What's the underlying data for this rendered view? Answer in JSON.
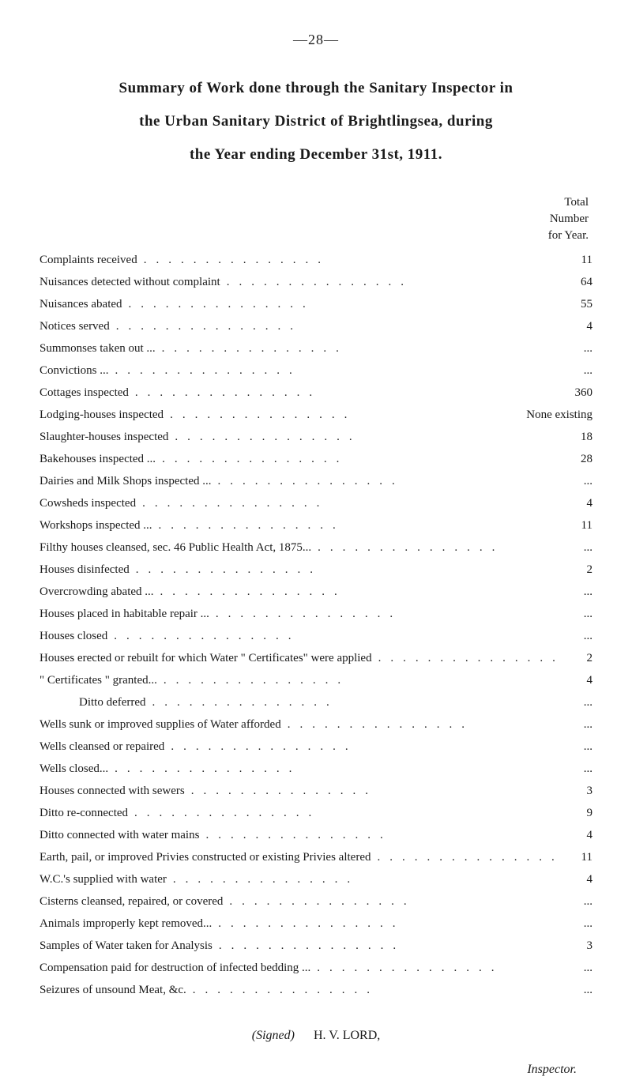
{
  "page_number": "—28—",
  "title": {
    "line1": "Summary of Work done through the Sanitary Inspector in",
    "line2": "the Urban Sanitary District of Brightlingsea, during",
    "line3": "the Year ending December 31st, 1911."
  },
  "header": {
    "line1": "Total",
    "line2": "Number",
    "line3": "for Year."
  },
  "rows": [
    {
      "label": "Complaints received",
      "value": "11"
    },
    {
      "label": "Nuisances detected without complaint",
      "value": "64"
    },
    {
      "label": "Nuisances abated",
      "value": "55"
    },
    {
      "label": "Notices served",
      "value": "4"
    },
    {
      "label": "Summonses taken out ...",
      "value": "..."
    },
    {
      "label": "Convictions ...",
      "value": "..."
    },
    {
      "label": "Cottages inspected",
      "value": "360"
    },
    {
      "label": "Lodging-houses inspected",
      "value": "None existing",
      "wide": true
    },
    {
      "label": "Slaughter-houses inspected",
      "value": "18"
    },
    {
      "label": "Bakehouses inspected ...",
      "value": "28"
    },
    {
      "label": "Dairies and Milk Shops inspected ...",
      "value": "..."
    },
    {
      "label": "Cowsheds inspected",
      "value": "4"
    },
    {
      "label": "Workshops inspected ...",
      "value": "11"
    },
    {
      "label": "Filthy houses cleansed, sec. 46 Public Health Act, 1875...",
      "value": "..."
    },
    {
      "label": "Houses disinfected",
      "value": "2"
    },
    {
      "label": "Overcrowding abated ...",
      "value": "..."
    },
    {
      "label": "Houses placed in habitable repair ...",
      "value": "..."
    },
    {
      "label": "Houses closed",
      "value": "..."
    },
    {
      "label": "Houses erected or rebuilt for which Water \" Certificates\" were applied",
      "value": "2"
    },
    {
      "label": "\" Certificates \" granted...",
      "value": "4"
    },
    {
      "label": "Ditto        deferred",
      "value": "...",
      "indent": true
    },
    {
      "label": "Wells sunk or improved supplies of Water afforded",
      "value": "..."
    },
    {
      "label": "Wells cleansed or repaired",
      "value": "..."
    },
    {
      "label": "Wells closed...",
      "value": "..."
    },
    {
      "label": "Houses connected with sewers",
      "value": "3"
    },
    {
      "label": "Ditto re-connected",
      "value": "9",
      "indent": false
    },
    {
      "label": "Ditto connected with water mains",
      "value": "4",
      "indent": false
    },
    {
      "label": "Earth, pail, or improved Privies constructed or existing Privies altered",
      "value": "11"
    },
    {
      "label": "W.C.'s supplied with water",
      "value": "4"
    },
    {
      "label": "Cisterns cleansed, repaired, or covered",
      "value": "..."
    },
    {
      "label": "Animals improperly kept removed...",
      "value": "..."
    },
    {
      "label": "Samples of Water taken for Analysis",
      "value": "3"
    },
    {
      "label": "Compensation paid for destruction of infected bedding ...",
      "value": "..."
    },
    {
      "label": "Seizures of unsound Meat, &c.",
      "value": "..."
    }
  ],
  "signature": {
    "signed_label": "(Signed)",
    "name": "H. V. LORD,"
  },
  "inspector_label": "Inspector.",
  "dotfill": "..............."
}
